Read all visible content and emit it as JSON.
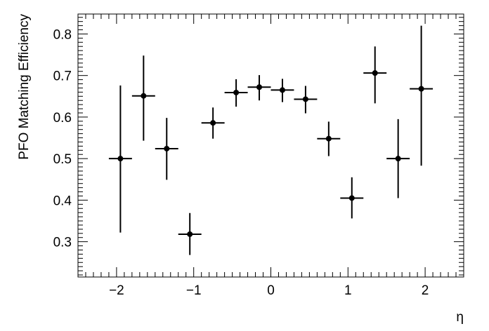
{
  "chart_data": {
    "type": "scatter",
    "xlabel": "η",
    "ylabel": "PFO Matching Efficiency",
    "xlim": [
      -2.5,
      2.5
    ],
    "ylim": [
      0.215,
      0.848
    ],
    "xticks": [
      -2,
      -1,
      0,
      1,
      2
    ],
    "yticks": [
      0.3,
      0.4,
      0.5,
      0.6,
      0.7,
      0.8
    ],
    "xtick_labels": [
      "−2",
      "−1",
      "0",
      "1",
      "2"
    ],
    "ytick_labels": [
      "0.3",
      "0.4",
      "0.5",
      "0.6",
      "0.7",
      "0.8"
    ],
    "grid": false,
    "legend": false,
    "points": [
      {
        "x": -1.95,
        "xerr": 0.15,
        "y": 0.5,
        "yerr_low": 0.178,
        "yerr_high": 0.176
      },
      {
        "x": -1.65,
        "xerr": 0.15,
        "y": 0.651,
        "yerr_low": 0.108,
        "yerr_high": 0.097
      },
      {
        "x": -1.35,
        "xerr": 0.15,
        "y": 0.524,
        "yerr_low": 0.075,
        "yerr_high": 0.074
      },
      {
        "x": -1.05,
        "xerr": 0.15,
        "y": 0.318,
        "yerr_low": 0.05,
        "yerr_high": 0.051
      },
      {
        "x": -0.75,
        "xerr": 0.15,
        "y": 0.586,
        "yerr_low": 0.038,
        "yerr_high": 0.037
      },
      {
        "x": -0.45,
        "xerr": 0.15,
        "y": 0.659,
        "yerr_low": 0.034,
        "yerr_high": 0.032
      },
      {
        "x": -0.15,
        "xerr": 0.15,
        "y": 0.672,
        "yerr_low": 0.032,
        "yerr_high": 0.029
      },
      {
        "x": 0.15,
        "xerr": 0.15,
        "y": 0.665,
        "yerr_low": 0.029,
        "yerr_high": 0.027
      },
      {
        "x": 0.45,
        "xerr": 0.15,
        "y": 0.643,
        "yerr_low": 0.034,
        "yerr_high": 0.032
      },
      {
        "x": 0.75,
        "xerr": 0.15,
        "y": 0.548,
        "yerr_low": 0.042,
        "yerr_high": 0.041
      },
      {
        "x": 1.05,
        "xerr": 0.15,
        "y": 0.405,
        "yerr_low": 0.049,
        "yerr_high": 0.05
      },
      {
        "x": 1.35,
        "xerr": 0.15,
        "y": 0.706,
        "yerr_low": 0.073,
        "yerr_high": 0.064
      },
      {
        "x": 1.65,
        "xerr": 0.15,
        "y": 0.5,
        "yerr_low": 0.095,
        "yerr_high": 0.095
      },
      {
        "x": 1.95,
        "xerr": 0.15,
        "y": 0.668,
        "yerr_low": 0.185,
        "yerr_high": 0.152
      }
    ]
  }
}
